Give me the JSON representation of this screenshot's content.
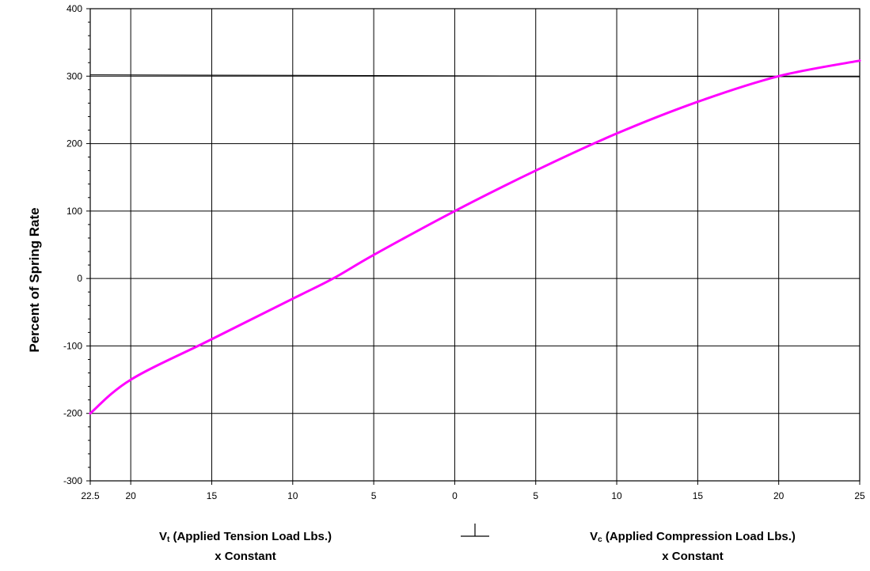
{
  "chart_data": {
    "type": "line",
    "title": "",
    "ylabel": "Percent of Spring Rate",
    "ylim": [
      -300,
      400
    ],
    "yticks": [
      -300,
      -200,
      -100,
      0,
      100,
      200,
      300,
      400
    ],
    "xlim": [
      -22.5,
      25
    ],
    "xticks": [
      -22.5,
      -20,
      -15,
      -10,
      -5,
      0,
      5,
      10,
      15,
      20,
      25
    ],
    "xtick_labels": [
      "22.5",
      "20",
      "15",
      "10",
      "5",
      "0",
      "5",
      "10",
      "15",
      "20",
      "25"
    ],
    "xlabel_left": {
      "prefix": "V",
      "subscript": "t",
      "text": " (Applied Tension Load Lbs.)",
      "line2": "x Constant"
    },
    "xlabel_right": {
      "prefix": "V",
      "subscript": "c",
      "text": " (Applied Compression Load Lbs.)",
      "line2": "x Constant"
    },
    "grid": true,
    "series": [
      {
        "color": "#ff00ff",
        "x": [
          -22.5,
          -20,
          -15,
          -10,
          -7.5,
          -5,
          0,
          5,
          10,
          15,
          20,
          25
        ],
        "y": [
          -200,
          -150,
          -90,
          -30,
          0,
          35,
          100,
          160,
          215,
          262,
          300,
          323
        ]
      }
    ],
    "reference_line": {
      "y_start": 302,
      "y_end": 299
    }
  }
}
